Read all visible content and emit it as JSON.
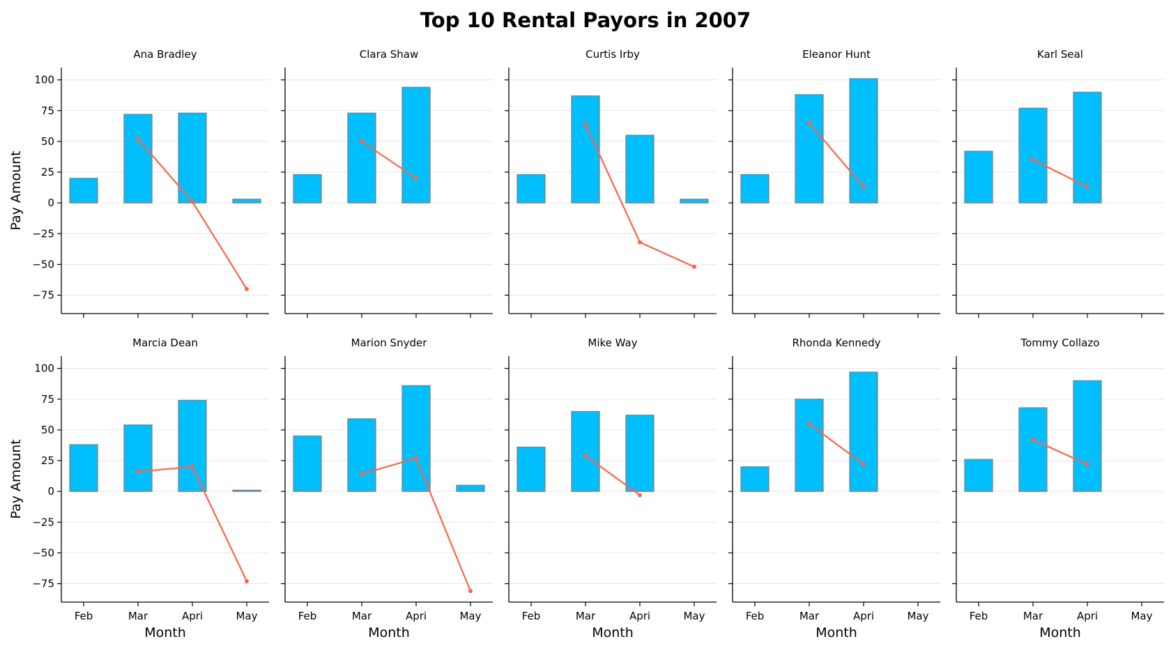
{
  "chart_data": {
    "type": "bar",
    "title": "Top 10 Rental Payors in 2007",
    "xlabel": "Month",
    "ylabel": "Pay Amount",
    "categories": [
      "Feb",
      "Mar",
      "Apri",
      "May"
    ],
    "ylim": [
      -90,
      110
    ],
    "yticks": [
      -75,
      -50,
      -25,
      0,
      25,
      50,
      75,
      100
    ],
    "grid": "horizontal",
    "layout": {
      "rows": 2,
      "cols": 5
    },
    "colors": {
      "bar": "#00bfff",
      "bar_edge": "#808080",
      "line": "#ff6347",
      "grid": "#e6e6e6"
    },
    "facets": [
      {
        "name": "Ana Bradley",
        "bars": [
          20,
          72,
          73,
          3
        ],
        "line": [
          null,
          52,
          1,
          -70
        ]
      },
      {
        "name": "Clara Shaw",
        "bars": [
          23,
          73,
          94,
          null
        ],
        "line": [
          null,
          50,
          20,
          null
        ]
      },
      {
        "name": "Curtis Irby",
        "bars": [
          23,
          87,
          55,
          3
        ],
        "line": [
          null,
          64,
          -32,
          -52
        ]
      },
      {
        "name": "Eleanor Hunt",
        "bars": [
          23,
          88,
          101,
          null
        ],
        "line": [
          null,
          65,
          13,
          null
        ]
      },
      {
        "name": "Karl Seal",
        "bars": [
          42,
          77,
          90,
          null
        ],
        "line": [
          null,
          35,
          13,
          null
        ]
      },
      {
        "name": "Marcia Dean",
        "bars": [
          38,
          54,
          74,
          1
        ],
        "line": [
          null,
          16,
          20,
          -73
        ]
      },
      {
        "name": "Marion Snyder",
        "bars": [
          45,
          59,
          86,
          5
        ],
        "line": [
          null,
          14,
          27,
          -81
        ]
      },
      {
        "name": "Mike Way",
        "bars": [
          36,
          65,
          62,
          null
        ],
        "line": [
          null,
          29,
          -3,
          null
        ]
      },
      {
        "name": "Rhonda Kennedy",
        "bars": [
          20,
          75,
          97,
          null
        ],
        "line": [
          null,
          55,
          22,
          null
        ]
      },
      {
        "name": "Tommy Collazo",
        "bars": [
          26,
          68,
          90,
          null
        ],
        "line": [
          null,
          42,
          22,
          null
        ]
      }
    ]
  }
}
